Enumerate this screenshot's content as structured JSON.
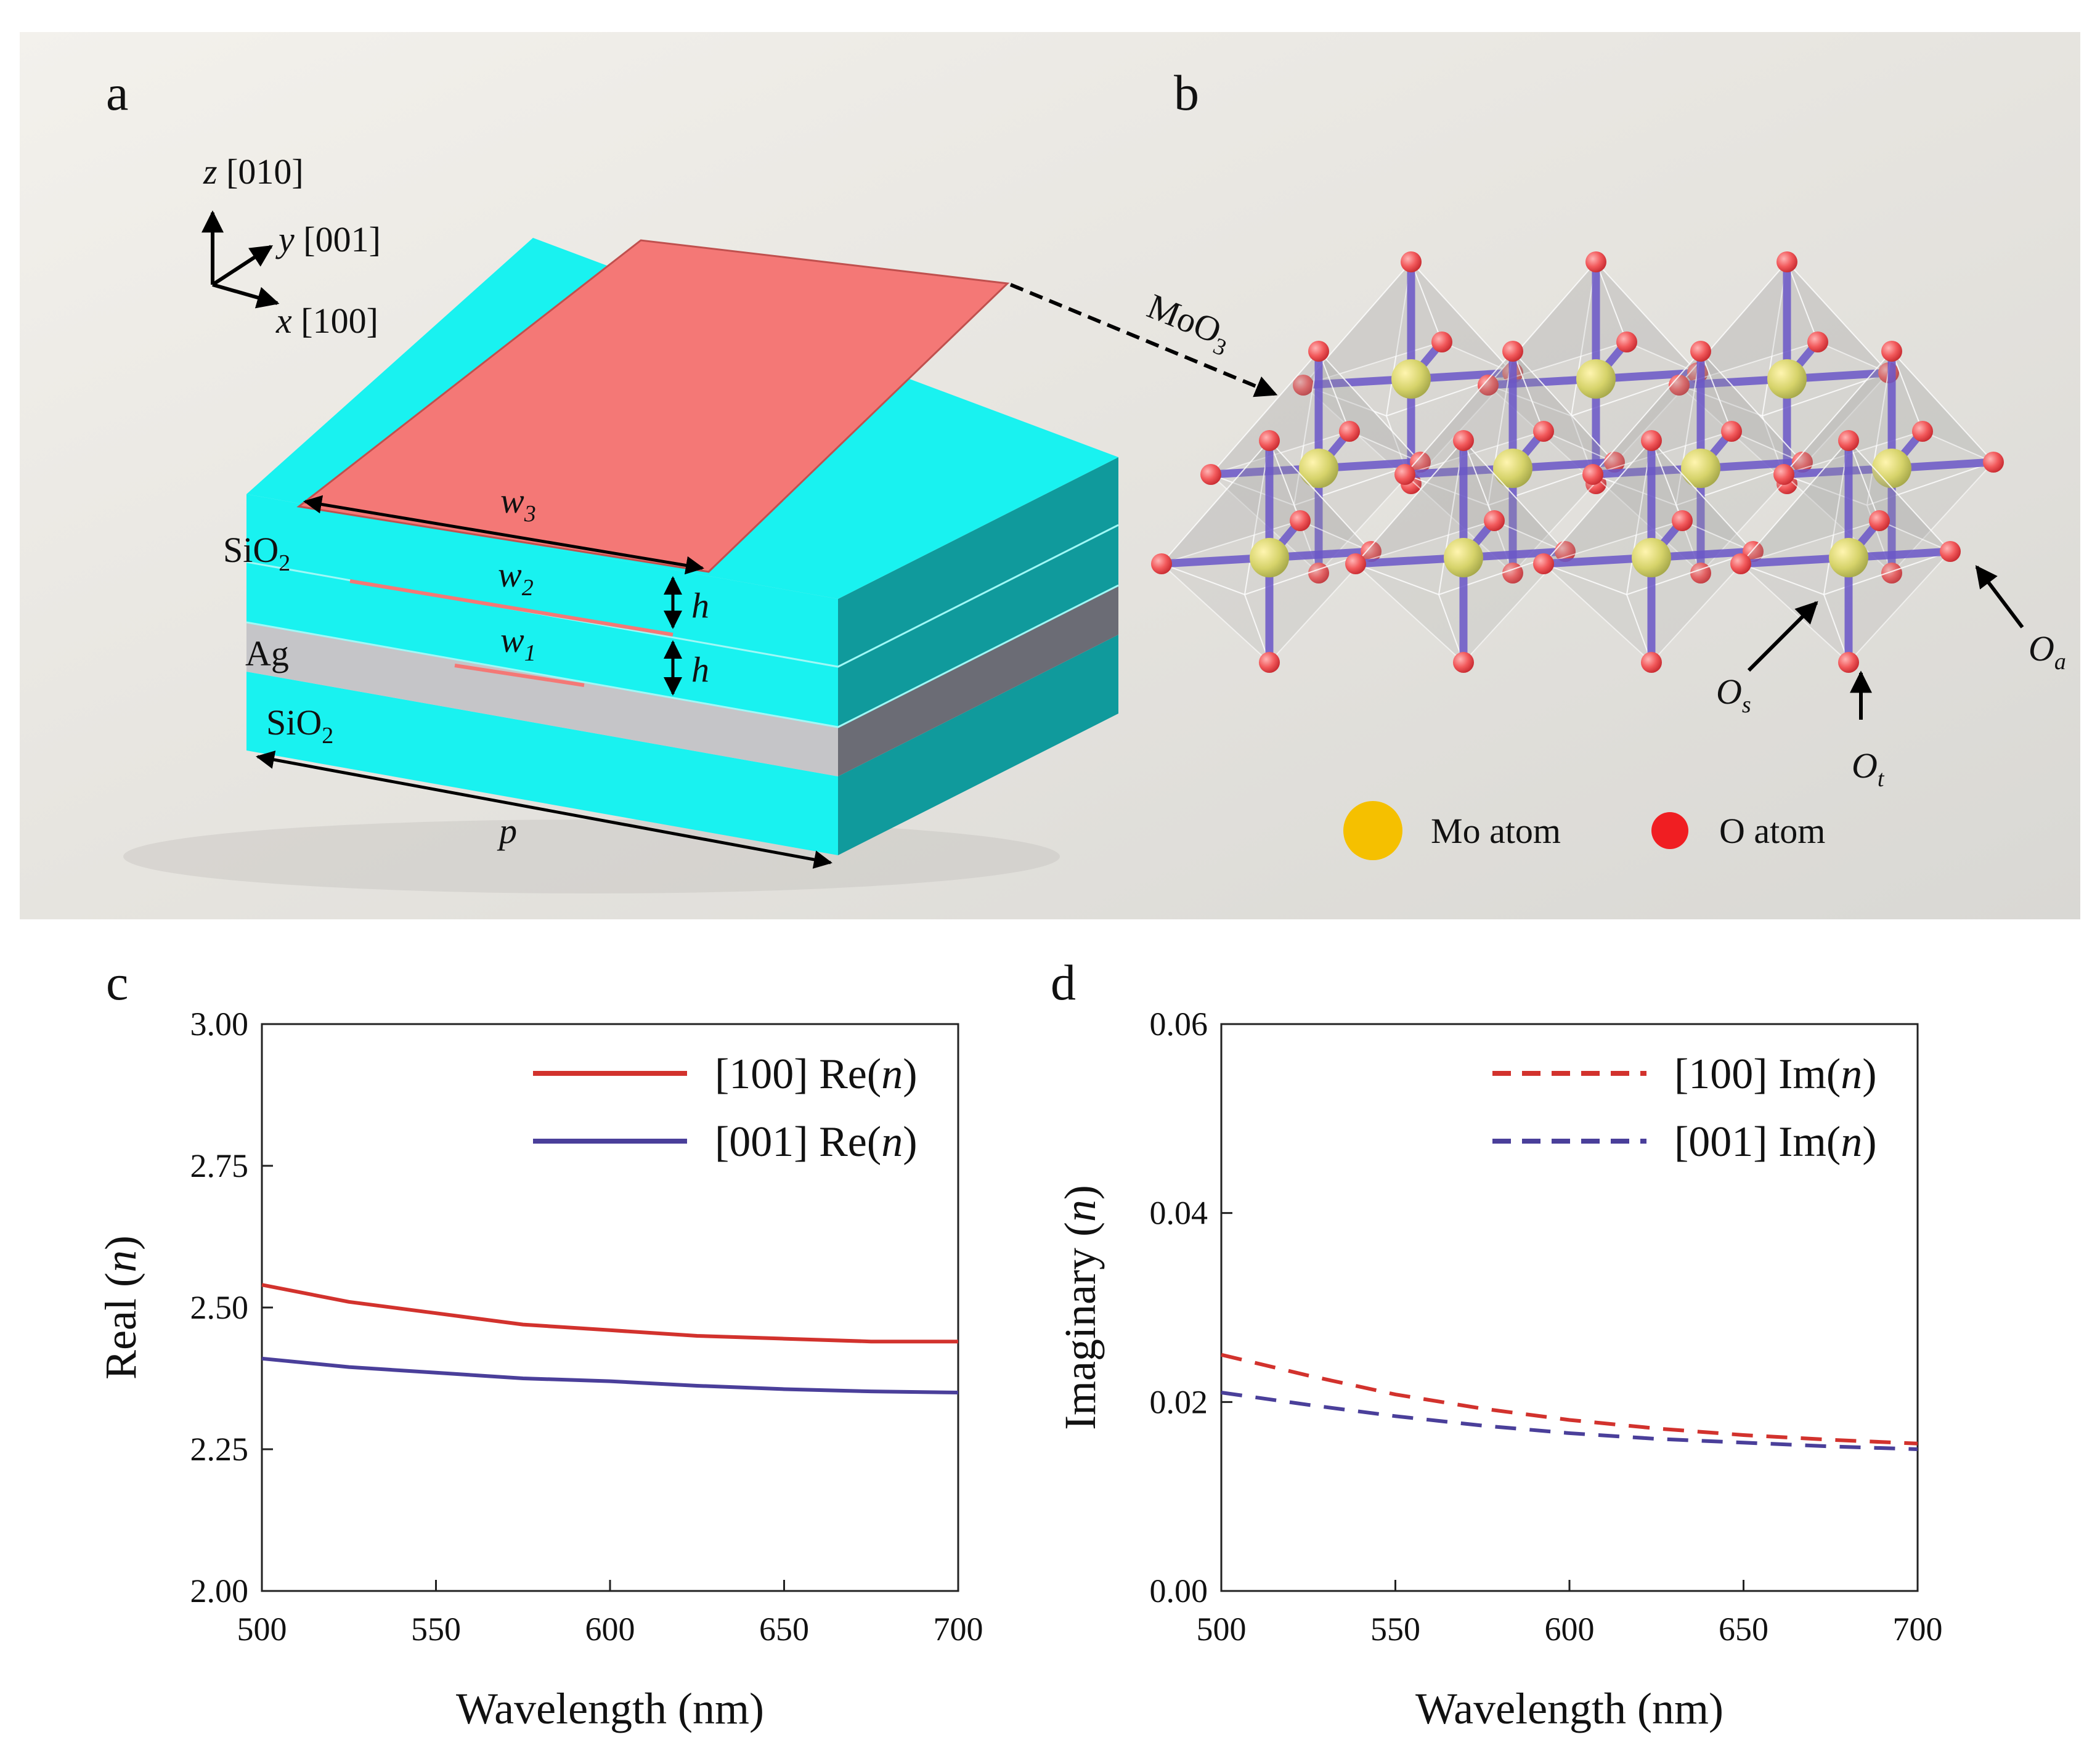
{
  "colors": {
    "silica": "#19f2f0",
    "silica_dark": "#109a9c",
    "silver": "#c5c5c8",
    "silver_dark": "#6b6c75",
    "moo3": "#f47876",
    "mo_atom": "#f5c000",
    "o_atom": "#f02a2a",
    "bond": "#6a56c8",
    "red_series": "#d2322d",
    "blue_series": "#4a3f9a"
  },
  "panels": {
    "a": {
      "label": "a",
      "axes": {
        "z": "z",
        "z_dir": " [010]",
        "y": "y",
        "y_dir": " [001]",
        "x": "x",
        "x_dir": " [100]"
      },
      "layers": {
        "top": "SiO",
        "top_sub": "2",
        "metal": "Ag",
        "bottom": "SiO",
        "bottom_sub": "2"
      },
      "dims": {
        "w3": "w",
        "w3_sub": "3",
        "w2": "w",
        "w2_sub": "2",
        "w1": "w",
        "w1_sub": "1",
        "h_upper": "h",
        "h_lower": "h",
        "p": "p"
      },
      "material": {
        "base": "MoO",
        "sub": "3"
      }
    },
    "b": {
      "label": "b",
      "oxygen_labels": {
        "os": "O",
        "os_sub": "s",
        "ot": "O",
        "ot_sub": "t",
        "oa": "O",
        "oa_sub": "a"
      },
      "legend": {
        "mo": "Mo atom",
        "o": "O atom"
      }
    },
    "c": {
      "label": "c"
    },
    "d": {
      "label": "d"
    }
  },
  "chart_data": [
    {
      "panel": "c",
      "type": "line",
      "title": "",
      "xlabel": "Wavelength (nm)",
      "ylabel_prefix": "Real (",
      "ylabel_italic": "n",
      "ylabel_suffix": ")",
      "xlim": [
        500,
        700
      ],
      "ylim": [
        2.0,
        3.0
      ],
      "xticks": [
        500,
        550,
        600,
        650,
        700
      ],
      "yticks": [
        "2.00",
        "2.25",
        "2.50",
        "2.75",
        "3.00"
      ],
      "x": [
        500,
        525,
        550,
        575,
        600,
        625,
        650,
        675,
        700
      ],
      "series": [
        {
          "name_prefix": "[100] Re(",
          "name_italic": "n",
          "name_suffix": ")",
          "color": "#d2322d",
          "dash": false,
          "values": [
            2.54,
            2.51,
            2.49,
            2.47,
            2.46,
            2.45,
            2.445,
            2.44,
            2.44
          ]
        },
        {
          "name_prefix": "[001] Re(",
          "name_italic": "n",
          "name_suffix": ")",
          "color": "#4a3f9a",
          "dash": false,
          "values": [
            2.41,
            2.395,
            2.385,
            2.375,
            2.37,
            2.362,
            2.356,
            2.352,
            2.35
          ]
        }
      ],
      "legend_position": "top-right"
    },
    {
      "panel": "d",
      "type": "line",
      "title": "",
      "xlabel": "Wavelength (nm)",
      "ylabel_prefix": "Imaginary (",
      "ylabel_italic": "n",
      "ylabel_suffix": ")",
      "xlim": [
        500,
        700
      ],
      "ylim": [
        0.0,
        0.06
      ],
      "xticks": [
        500,
        550,
        600,
        650,
        700
      ],
      "yticks": [
        "0.00",
        "0.02",
        "0.04",
        "0.06"
      ],
      "x": [
        500,
        525,
        550,
        575,
        600,
        625,
        650,
        675,
        700
      ],
      "series": [
        {
          "name_prefix": "[100] Im(",
          "name_italic": "n",
          "name_suffix": ")",
          "color": "#d2322d",
          "dash": true,
          "values": [
            0.025,
            0.0228,
            0.0208,
            0.0193,
            0.0181,
            0.0172,
            0.0165,
            0.016,
            0.0156
          ]
        },
        {
          "name_prefix": "[001] Im(",
          "name_italic": "n",
          "name_suffix": ")",
          "color": "#4a3f9a",
          "dash": true,
          "values": [
            0.021,
            0.0197,
            0.0185,
            0.0175,
            0.0167,
            0.0161,
            0.0157,
            0.0153,
            0.015
          ]
        }
      ],
      "legend_position": "top-right"
    }
  ]
}
